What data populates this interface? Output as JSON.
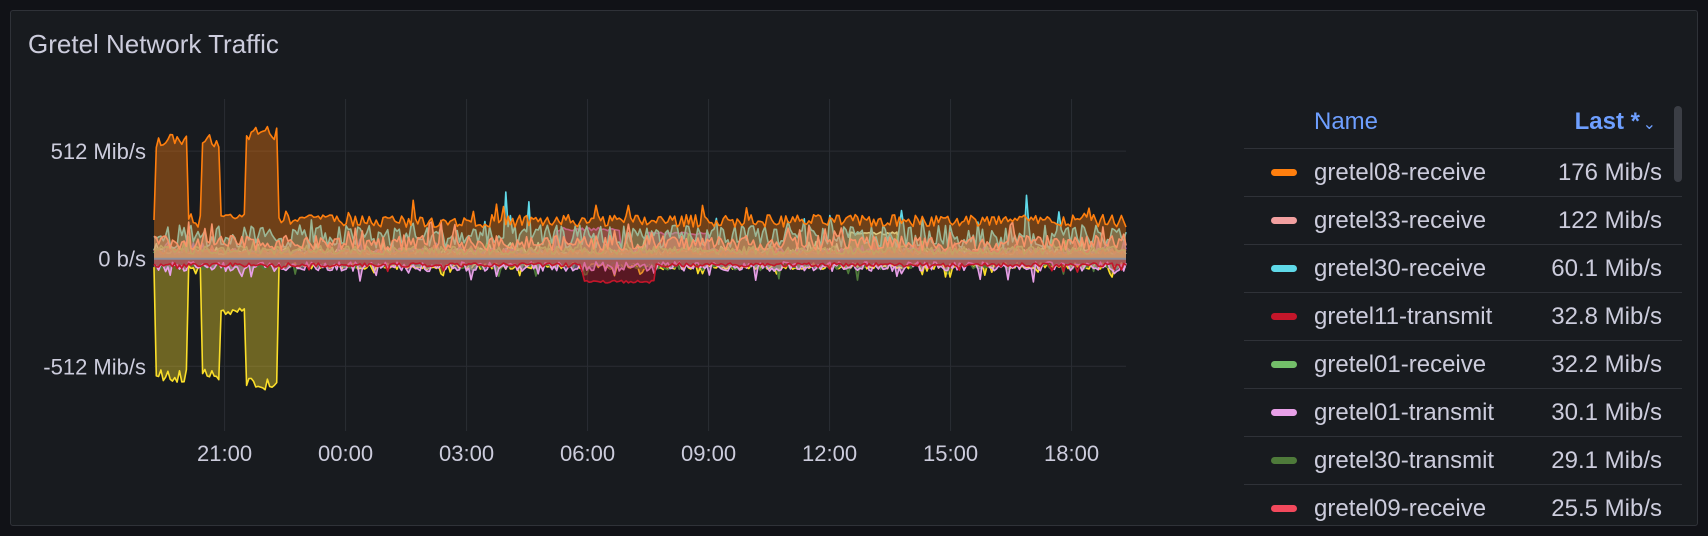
{
  "panel": {
    "title": "Gretel Network Traffic"
  },
  "legend": {
    "col_name": "Name",
    "col_last": "Last *",
    "sort_icon": "chevron-down-icon"
  },
  "chart_data": {
    "type": "area",
    "title": "Gretel Network Traffic",
    "x_ticks": [
      "21:00",
      "00:00",
      "03:00",
      "06:00",
      "09:00",
      "12:00",
      "15:00",
      "18:00"
    ],
    "y_ticks": [
      {
        "value": 512,
        "label": "512 Mib/s"
      },
      {
        "value": 0,
        "label": "0 b/s"
      },
      {
        "value": -512,
        "label": "-512 Mib/s"
      }
    ],
    "ylim": [
      -820,
      760
    ],
    "xlim_hours": [
      19.25,
      43.35
    ],
    "grid": true,
    "legend_placement": "right",
    "series": [
      {
        "name": "gretel08-receive",
        "color": "#ff7f0e",
        "last": "176 Mib/s",
        "dir": 1,
        "base": 150,
        "noise": 60,
        "blocks": [
          [
            19.3,
            20.1,
            560
          ],
          [
            20.4,
            20.9,
            560
          ],
          [
            21.5,
            22.3,
            600
          ],
          [
            20.9,
            21.5,
            200
          ],
          [
            23.0,
            23.6,
            200
          ],
          [
            9.0,
            10.5,
            250
          ]
        ]
      },
      {
        "name": "gretel33-receive",
        "color": "#f2a0a0",
        "last": "122 Mib/s",
        "dir": 1,
        "base": 40,
        "noise": 70,
        "blocks": []
      },
      {
        "name": "gretel30-receive",
        "color": "#5fd9e8",
        "last": "60.1 Mib/s",
        "dir": 1,
        "base": 50,
        "noise": 110,
        "blocks": []
      },
      {
        "name": "gretel11-transmit",
        "color": "#c4162a",
        "last": "32.8 Mib/s",
        "dir": -1,
        "base": 20,
        "noise": 20,
        "blocks": [
          [
            29.9,
            31.7,
            110
          ]
        ]
      },
      {
        "name": "gretel01-receive",
        "color": "#73bf69",
        "last": "32.2 Mib/s",
        "dir": 1,
        "base": 20,
        "noise": 40,
        "blocks": []
      },
      {
        "name": "gretel01-transmit",
        "color": "#e8a0e8",
        "last": "30.1 Mib/s",
        "dir": -1,
        "base": 15,
        "noise": 45,
        "blocks": []
      },
      {
        "name": "gretel30-transmit",
        "color": "#4e7a3a",
        "last": "29.1 Mib/s",
        "dir": -1,
        "base": 15,
        "noise": 35,
        "blocks": []
      },
      {
        "name": "gretel09-receive",
        "color": "#f2495c",
        "last": "25.5 Mib/s",
        "dir": 1,
        "base": 15,
        "noise": 30,
        "blocks": []
      },
      {
        "name": "",
        "color": "#fade2a",
        "last": "",
        "dir": -1,
        "base": 20,
        "noise": 30,
        "blocks": [
          [
            19.3,
            20.1,
            560
          ],
          [
            20.4,
            20.9,
            560
          ],
          [
            21.5,
            22.3,
            600
          ],
          [
            20.9,
            21.5,
            250
          ]
        ]
      },
      {
        "name": "",
        "color": "#a352cc",
        "last": "",
        "dir": 1,
        "base": 20,
        "noise": 30,
        "blocks": [
          [
            29.2,
            30.8,
            140
          ],
          [
            31.5,
            33.0,
            120
          ]
        ]
      },
      {
        "name": "",
        "color": "#c8f2c2",
        "last": "",
        "dir": 1,
        "base": 20,
        "noise": 30,
        "blocks": [
          [
            36.5,
            37.7,
            120
          ]
        ]
      }
    ]
  }
}
